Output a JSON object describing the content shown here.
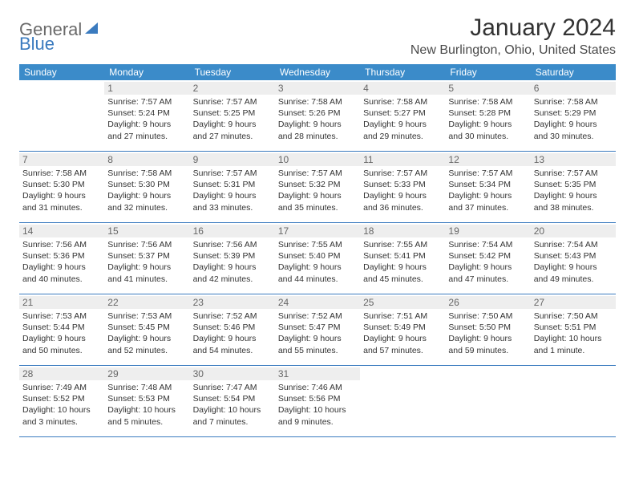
{
  "logo": {
    "general": "General",
    "blue": "Blue"
  },
  "title": "January 2024",
  "location": "New Burlington, Ohio, United States",
  "header_bg": "#3b8bc9",
  "header_text": "#ffffff",
  "border_color": "#3b7bbf",
  "daynum_bg": "#eeeeee",
  "daynames": [
    "Sunday",
    "Monday",
    "Tuesday",
    "Wednesday",
    "Thursday",
    "Friday",
    "Saturday"
  ],
  "weeks": [
    [
      {
        "n": "",
        "sr": "",
        "ss": "",
        "dl": ""
      },
      {
        "n": "1",
        "sr": "Sunrise: 7:57 AM",
        "ss": "Sunset: 5:24 PM",
        "dl": "Daylight: 9 hours and 27 minutes."
      },
      {
        "n": "2",
        "sr": "Sunrise: 7:57 AM",
        "ss": "Sunset: 5:25 PM",
        "dl": "Daylight: 9 hours and 27 minutes."
      },
      {
        "n": "3",
        "sr": "Sunrise: 7:58 AM",
        "ss": "Sunset: 5:26 PM",
        "dl": "Daylight: 9 hours and 28 minutes."
      },
      {
        "n": "4",
        "sr": "Sunrise: 7:58 AM",
        "ss": "Sunset: 5:27 PM",
        "dl": "Daylight: 9 hours and 29 minutes."
      },
      {
        "n": "5",
        "sr": "Sunrise: 7:58 AM",
        "ss": "Sunset: 5:28 PM",
        "dl": "Daylight: 9 hours and 30 minutes."
      },
      {
        "n": "6",
        "sr": "Sunrise: 7:58 AM",
        "ss": "Sunset: 5:29 PM",
        "dl": "Daylight: 9 hours and 30 minutes."
      }
    ],
    [
      {
        "n": "7",
        "sr": "Sunrise: 7:58 AM",
        "ss": "Sunset: 5:30 PM",
        "dl": "Daylight: 9 hours and 31 minutes."
      },
      {
        "n": "8",
        "sr": "Sunrise: 7:58 AM",
        "ss": "Sunset: 5:30 PM",
        "dl": "Daylight: 9 hours and 32 minutes."
      },
      {
        "n": "9",
        "sr": "Sunrise: 7:57 AM",
        "ss": "Sunset: 5:31 PM",
        "dl": "Daylight: 9 hours and 33 minutes."
      },
      {
        "n": "10",
        "sr": "Sunrise: 7:57 AM",
        "ss": "Sunset: 5:32 PM",
        "dl": "Daylight: 9 hours and 35 minutes."
      },
      {
        "n": "11",
        "sr": "Sunrise: 7:57 AM",
        "ss": "Sunset: 5:33 PM",
        "dl": "Daylight: 9 hours and 36 minutes."
      },
      {
        "n": "12",
        "sr": "Sunrise: 7:57 AM",
        "ss": "Sunset: 5:34 PM",
        "dl": "Daylight: 9 hours and 37 minutes."
      },
      {
        "n": "13",
        "sr": "Sunrise: 7:57 AM",
        "ss": "Sunset: 5:35 PM",
        "dl": "Daylight: 9 hours and 38 minutes."
      }
    ],
    [
      {
        "n": "14",
        "sr": "Sunrise: 7:56 AM",
        "ss": "Sunset: 5:36 PM",
        "dl": "Daylight: 9 hours and 40 minutes."
      },
      {
        "n": "15",
        "sr": "Sunrise: 7:56 AM",
        "ss": "Sunset: 5:37 PM",
        "dl": "Daylight: 9 hours and 41 minutes."
      },
      {
        "n": "16",
        "sr": "Sunrise: 7:56 AM",
        "ss": "Sunset: 5:39 PM",
        "dl": "Daylight: 9 hours and 42 minutes."
      },
      {
        "n": "17",
        "sr": "Sunrise: 7:55 AM",
        "ss": "Sunset: 5:40 PM",
        "dl": "Daylight: 9 hours and 44 minutes."
      },
      {
        "n": "18",
        "sr": "Sunrise: 7:55 AM",
        "ss": "Sunset: 5:41 PM",
        "dl": "Daylight: 9 hours and 45 minutes."
      },
      {
        "n": "19",
        "sr": "Sunrise: 7:54 AM",
        "ss": "Sunset: 5:42 PM",
        "dl": "Daylight: 9 hours and 47 minutes."
      },
      {
        "n": "20",
        "sr": "Sunrise: 7:54 AM",
        "ss": "Sunset: 5:43 PM",
        "dl": "Daylight: 9 hours and 49 minutes."
      }
    ],
    [
      {
        "n": "21",
        "sr": "Sunrise: 7:53 AM",
        "ss": "Sunset: 5:44 PM",
        "dl": "Daylight: 9 hours and 50 minutes."
      },
      {
        "n": "22",
        "sr": "Sunrise: 7:53 AM",
        "ss": "Sunset: 5:45 PM",
        "dl": "Daylight: 9 hours and 52 minutes."
      },
      {
        "n": "23",
        "sr": "Sunrise: 7:52 AM",
        "ss": "Sunset: 5:46 PM",
        "dl": "Daylight: 9 hours and 54 minutes."
      },
      {
        "n": "24",
        "sr": "Sunrise: 7:52 AM",
        "ss": "Sunset: 5:47 PM",
        "dl": "Daylight: 9 hours and 55 minutes."
      },
      {
        "n": "25",
        "sr": "Sunrise: 7:51 AM",
        "ss": "Sunset: 5:49 PM",
        "dl": "Daylight: 9 hours and 57 minutes."
      },
      {
        "n": "26",
        "sr": "Sunrise: 7:50 AM",
        "ss": "Sunset: 5:50 PM",
        "dl": "Daylight: 9 hours and 59 minutes."
      },
      {
        "n": "27",
        "sr": "Sunrise: 7:50 AM",
        "ss": "Sunset: 5:51 PM",
        "dl": "Daylight: 10 hours and 1 minute."
      }
    ],
    [
      {
        "n": "28",
        "sr": "Sunrise: 7:49 AM",
        "ss": "Sunset: 5:52 PM",
        "dl": "Daylight: 10 hours and 3 minutes."
      },
      {
        "n": "29",
        "sr": "Sunrise: 7:48 AM",
        "ss": "Sunset: 5:53 PM",
        "dl": "Daylight: 10 hours and 5 minutes."
      },
      {
        "n": "30",
        "sr": "Sunrise: 7:47 AM",
        "ss": "Sunset: 5:54 PM",
        "dl": "Daylight: 10 hours and 7 minutes."
      },
      {
        "n": "31",
        "sr": "Sunrise: 7:46 AM",
        "ss": "Sunset: 5:56 PM",
        "dl": "Daylight: 10 hours and 9 minutes."
      },
      {
        "n": "",
        "sr": "",
        "ss": "",
        "dl": ""
      },
      {
        "n": "",
        "sr": "",
        "ss": "",
        "dl": ""
      },
      {
        "n": "",
        "sr": "",
        "ss": "",
        "dl": ""
      }
    ]
  ]
}
